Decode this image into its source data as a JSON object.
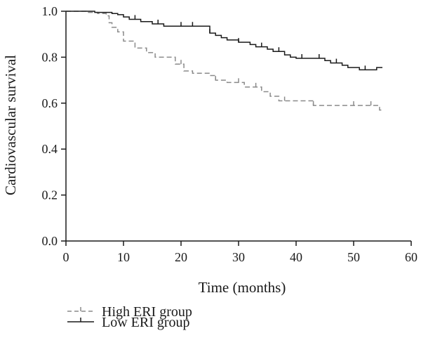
{
  "chart_data": {
    "type": "line",
    "subtype": "kaplan-meier step",
    "xlabel": "Time (months)",
    "ylabel": "Cardiovascular survival",
    "xlim": [
      0,
      60
    ],
    "ylim": [
      0,
      1.0
    ],
    "xticks": [
      0,
      10,
      20,
      30,
      40,
      50,
      60
    ],
    "xtick_labels": [
      "0",
      "10",
      "20",
      "30",
      "40",
      "50",
      "60"
    ],
    "yticks": [
      0,
      0.2,
      0.4,
      0.6,
      0.8,
      1.0
    ],
    "ytick_labels": [
      "0.0",
      "0.2",
      "0.4",
      "0.6",
      "0.8",
      "1.0"
    ],
    "grid": false,
    "legend_position": "bottom-left",
    "series": [
      {
        "name": "High ERI group",
        "style": "dashed",
        "color": "#8a8a8a",
        "x": [
          0,
          3.5,
          5.5,
          7,
          7.5,
          8,
          9,
          10,
          12,
          14,
          15.5,
          19,
          20.5,
          22,
          25,
          26,
          28,
          31,
          34,
          35.5,
          37,
          38,
          43,
          44,
          50,
          53,
          54.5,
          55
        ],
        "y": [
          1.0,
          0.995,
          0.99,
          0.98,
          0.95,
          0.93,
          0.91,
          0.87,
          0.84,
          0.82,
          0.8,
          0.77,
          0.74,
          0.73,
          0.72,
          0.7,
          0.69,
          0.67,
          0.65,
          0.63,
          0.61,
          0.61,
          0.59,
          0.59,
          0.59,
          0.59,
          0.57,
          0.57
        ],
        "censor_x": [
          20,
          26,
          30,
          33,
          38,
          43,
          50,
          53
        ]
      },
      {
        "name": "Low ERI group",
        "style": "solid",
        "color": "#1a1a1a",
        "x": [
          0,
          5,
          8,
          9,
          10,
          11,
          13,
          15,
          17,
          25,
          26,
          27,
          28,
          30,
          32,
          33,
          35,
          36,
          38,
          39,
          40,
          45,
          46,
          48,
          49,
          51,
          54,
          55
        ],
        "y": [
          1.0,
          0.995,
          0.99,
          0.985,
          0.975,
          0.965,
          0.955,
          0.945,
          0.935,
          0.905,
          0.895,
          0.885,
          0.875,
          0.865,
          0.855,
          0.845,
          0.835,
          0.825,
          0.81,
          0.8,
          0.795,
          0.785,
          0.775,
          0.765,
          0.755,
          0.745,
          0.755,
          0.755
        ],
        "censor_x": [
          12,
          16,
          20,
          22,
          25,
          30,
          34,
          37,
          41,
          44,
          47,
          52
        ]
      }
    ]
  },
  "legend": {
    "items": [
      {
        "label": "High ERI group"
      },
      {
        "label": "Low ERI group"
      }
    ]
  }
}
